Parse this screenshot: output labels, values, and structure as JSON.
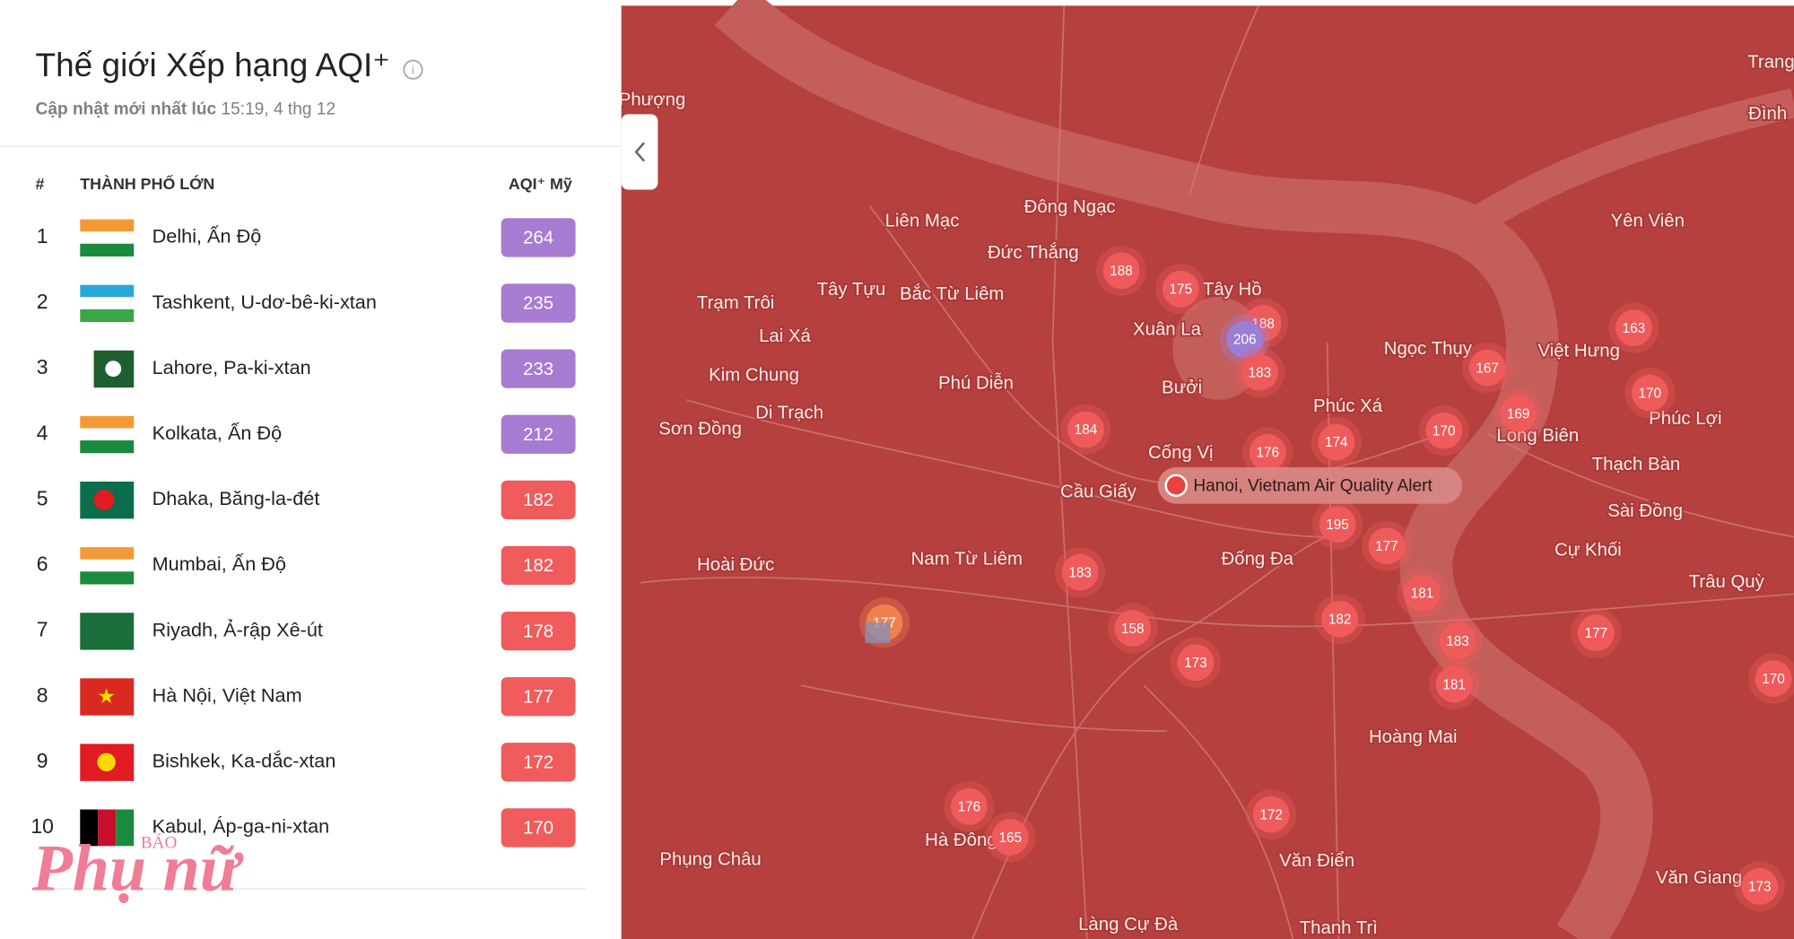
{
  "header": {
    "title": "Thế giới Xếp hạng AQI⁺",
    "updated_label": "Cập nhật mới nhất lúc",
    "updated_time": "15:19, 4 thg 12"
  },
  "table": {
    "columns": [
      "#",
      "THÀNH PHỐ LỚN",
      "AQI⁺ Mỹ"
    ],
    "rows": [
      {
        "rank": 1,
        "city": "Delhi, Ấn Độ",
        "aqi": 264,
        "color": "#a77bd1"
      },
      {
        "rank": 2,
        "city": "Tashkent, U-dơ-bê-ki-xtan",
        "aqi": 235,
        "color": "#a77bd1"
      },
      {
        "rank": 3,
        "city": "Lahore, Pa-ki-xtan",
        "aqi": 233,
        "color": "#a77bd1"
      },
      {
        "rank": 4,
        "city": "Kolkata, Ấn Độ",
        "aqi": 212,
        "color": "#a77bd1"
      },
      {
        "rank": 5,
        "city": "Dhaka, Băng-la-đét",
        "aqi": 182,
        "color": "#f05b5b"
      },
      {
        "rank": 6,
        "city": "Mumbai, Ấn Độ",
        "aqi": 182,
        "color": "#f05b5b"
      },
      {
        "rank": 7,
        "city": "Riyadh, Ả-rập Xê-út",
        "aqi": 178,
        "color": "#f05b5b"
      },
      {
        "rank": 8,
        "city": "Hà Nội, Việt Nam",
        "aqi": 177,
        "color": "#f05b5b"
      },
      {
        "rank": 9,
        "city": "Bishkek, Ka-dắc-xtan",
        "aqi": 172,
        "color": "#f05b5b"
      },
      {
        "rank": 10,
        "city": "Kabul, Áp-ga-ni-xtan",
        "aqi": 170,
        "color": "#f05b5b"
      }
    ]
  },
  "map": {
    "alert": "Hanoi, Vietnam Air Quality Alert",
    "marker_color": "#ef5b5b",
    "places": [
      "Phượng",
      "Trang",
      "Đình",
      "Liên Mạc",
      "Đông Ngạc",
      "Đức Thắng",
      "Yên Viên",
      "Tây Tựu",
      "Bắc Từ Liêm",
      "Tây Hồ",
      "Trạm Trôi",
      "Xuân La",
      "Lai Xá",
      "Ngọc Thụy",
      "Việt Hưng",
      "Kim Chung",
      "Phú Diễn",
      "Bưởi",
      "Phúc Xá",
      "Di Trạch",
      "Sơn Đồng",
      "Long Biên",
      "Phúc Lợi",
      "Cống Vị",
      "Thạch Bàn",
      "Cầu Giấy",
      "Sài Đồng",
      "Hoài Đức",
      "Nam Từ Liêm",
      "Đống Đa",
      "Cự Khối",
      "Trâu Quỳ",
      "Hoàng Mai",
      "Phụng Châu",
      "Văn Điển",
      "Văn Giang",
      "Làng Cự Đà",
      "Thanh Trì",
      "Hà Đông"
    ],
    "markers": [
      {
        "value": 188
      },
      {
        "value": 175
      },
      {
        "value": 188
      },
      {
        "value": 206,
        "color": "#9b7fd6"
      },
      {
        "value": 183
      },
      {
        "value": 184
      },
      {
        "value": 176
      },
      {
        "value": 174
      },
      {
        "value": 170
      },
      {
        "value": 169
      },
      {
        "value": 167
      },
      {
        "value": 163
      },
      {
        "value": 170
      },
      {
        "value": 195
      },
      {
        "value": 177
      },
      {
        "value": 183
      },
      {
        "value": 181
      },
      {
        "value": 182
      },
      {
        "value": 158
      },
      {
        "value": 173
      },
      {
        "value": 183
      },
      {
        "value": 181
      },
      {
        "value": 177
      },
      {
        "value": 170
      },
      {
        "value": 176
      },
      {
        "value": 165
      },
      {
        "value": 172
      },
      {
        "value": 173
      },
      {
        "value": 177,
        "color": "#f2804f"
      }
    ]
  },
  "watermark": {
    "small": "BÁO",
    "large": "Phụ nữ"
  }
}
